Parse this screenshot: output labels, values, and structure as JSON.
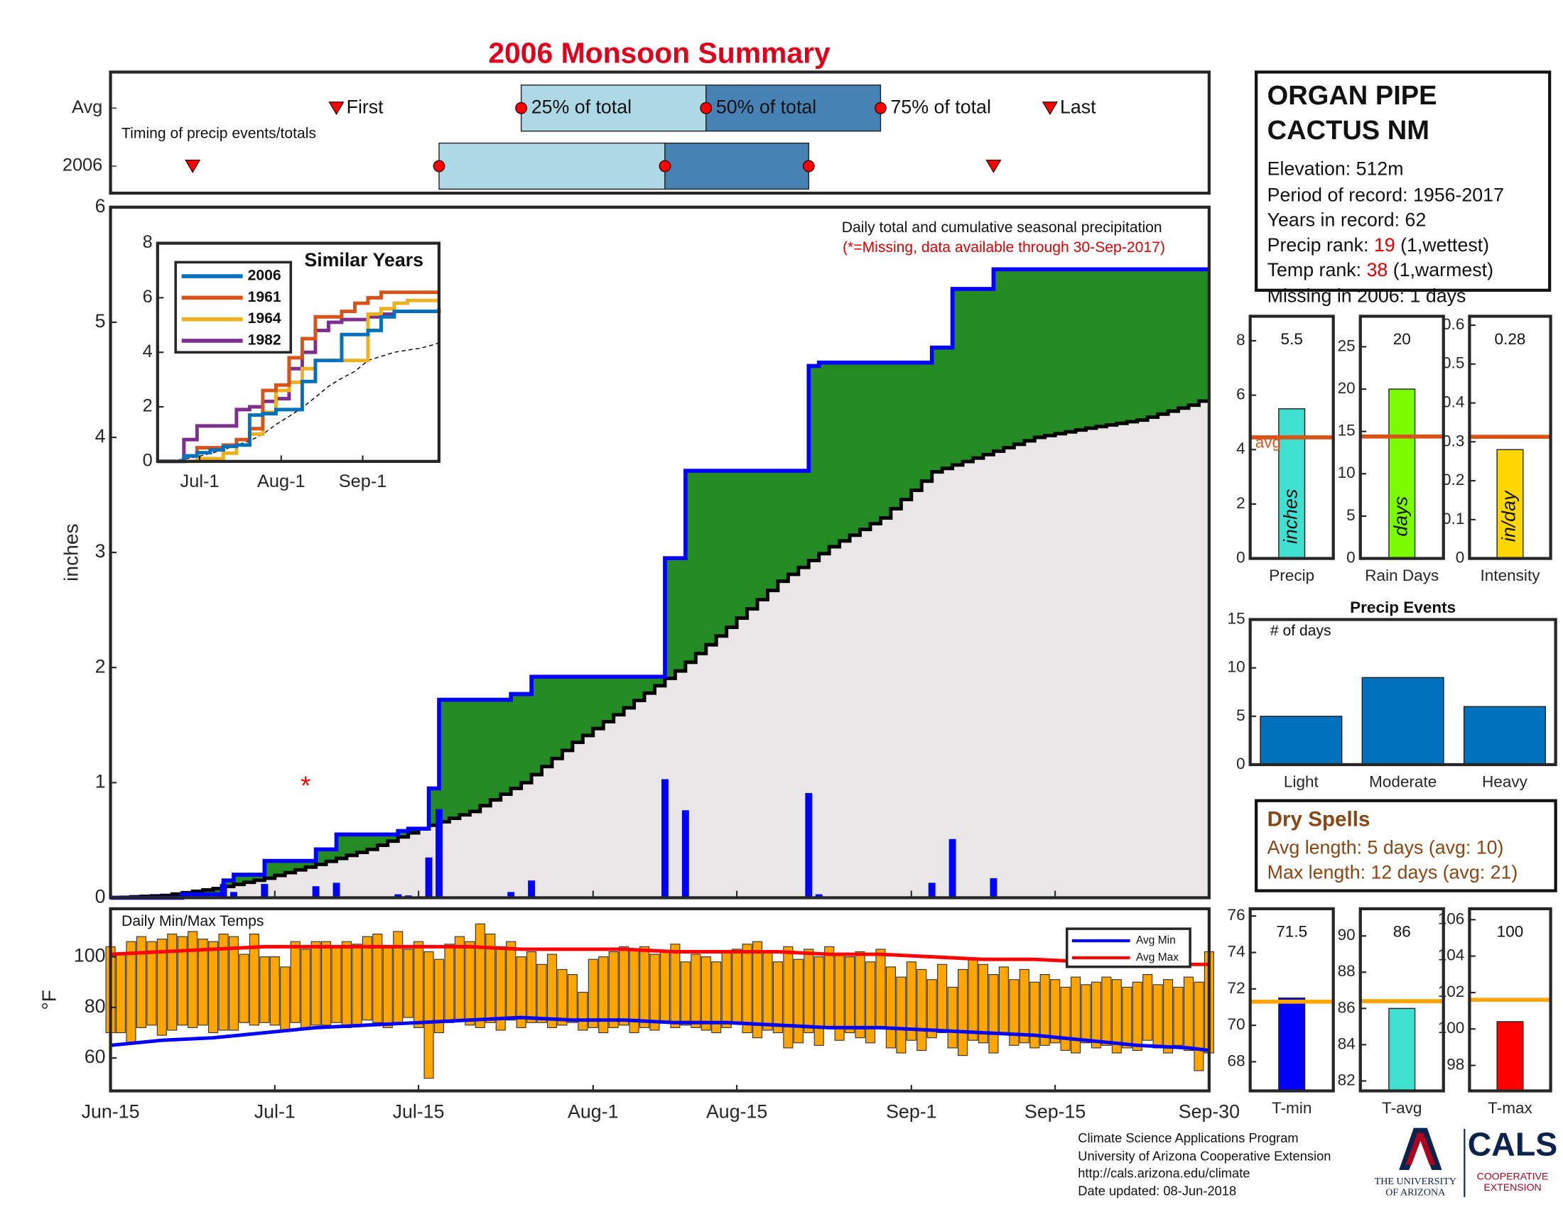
{
  "title": "2006 Monsoon Summary",
  "station": {
    "name": [
      "ORGAN PIPE",
      "CACTUS NM"
    ],
    "elevation": "Elevation: 512m",
    "period": "Period of record: 1956-2017",
    "years": "Years in record: 62",
    "precip_rank": {
      "label": "Precip rank: ",
      "rank": "19",
      "note": " (1,wettest)"
    },
    "temp_rank": {
      "label": "Temp rank: ",
      "rank": "38",
      "note": " (1,warmest)"
    },
    "missing": "Missing in 2006: 1 days"
  },
  "dry_spells": {
    "title": "Dry Spells",
    "lines": [
      "Avg length: 5 days (avg: 10)",
      "Max length: 12 days (avg: 21)"
    ]
  },
  "footer": [
    "Climate Science Applications Program",
    "University of Arizona Cooperative Extension",
    "http://cals.arizona.edu/climate",
    " Date updated: 08-Jun-2018"
  ],
  "logos": {
    "ua": [
      "THE UNIVERSITY",
      "OF ARIZONA"
    ],
    "cals": "CALS",
    "cals_sub": [
      "COOPERATIVE",
      "EXTENSION"
    ]
  },
  "chart_data": [
    {
      "type": "timeline",
      "subtitle": "Timing of precip events/totals",
      "markers": [
        "First",
        "25% of total",
        "50% of total",
        "75% of total",
        "Last"
      ],
      "series": [
        {
          "name": "Avg",
          "values": [
            22,
            40,
            58,
            75,
            91.5
          ]
        },
        {
          "name": "2006",
          "values": [
            8,
            32,
            54,
            68,
            86
          ]
        }
      ],
      "colors": [
        "#add8e6",
        "#4682b4"
      ],
      "marker_color": "#ff0000",
      "xlim": [
        0,
        107
      ]
    },
    {
      "type": "area",
      "subtitle": "Daily total and cumulative seasonal precipitation",
      "note": "(*=Missing, data available through 30-Sep-2017)",
      "ylabel": "inches",
      "xlim": [
        0,
        107
      ],
      "ylim": [
        0,
        6
      ],
      "yticks": [
        0,
        1,
        2,
        3,
        4,
        5,
        6
      ],
      "x": [
        7,
        11,
        12,
        15,
        20,
        22,
        28,
        29,
        31,
        32,
        39,
        41,
        54,
        56,
        68,
        69,
        80,
        82,
        86
      ],
      "values": [
        0.03,
        0.12,
        0.05,
        0.12,
        0.1,
        0.13,
        0.03,
        0.02,
        0.35,
        0.77,
        0.05,
        0.15,
        1.03,
        0.76,
        0.91,
        0.03,
        0.13,
        0.51,
        0.17
      ],
      "color": "#0000ff",
      "fill": "#228b22",
      "average": {
        "x": [
          0,
          5,
          10,
          15,
          20,
          25,
          30,
          35,
          40,
          45,
          50,
          55,
          60,
          65,
          70,
          75,
          80,
          85,
          90,
          95,
          100,
          105,
          107
        ],
        "values": [
          0,
          0.02,
          0.08,
          0.17,
          0.29,
          0.42,
          0.6,
          0.75,
          1.0,
          1.35,
          1.65,
          1.97,
          2.35,
          2.75,
          3.05,
          3.3,
          3.7,
          3.85,
          4.0,
          4.08,
          4.15,
          4.28,
          4.35
        ],
        "color": "#000000",
        "fill": "#e8e6e6"
      },
      "missing": {
        "x": 19,
        "value": 1,
        "label": "*",
        "color": "#ff0000"
      }
    },
    {
      "type": "line",
      "title": "Similar Years",
      "xlim": [
        0,
        107
      ],
      "ylim": [
        0,
        8
      ],
      "yticks": [
        0,
        2,
        4,
        6,
        8
      ],
      "xticks": [
        {
          "value": 16,
          "label": "Jul-1"
        },
        {
          "value": 47,
          "label": "Aug-1"
        },
        {
          "value": 78,
          "label": "Sep-1"
        }
      ],
      "x": [
        0,
        10,
        15,
        20,
        25,
        30,
        35,
        40,
        45,
        50,
        55,
        60,
        65,
        70,
        75,
        80,
        85,
        90,
        95,
        100,
        107
      ],
      "series": [
        {
          "name": "2006",
          "color": "#0072bd",
          "values": [
            0,
            0.2,
            0.32,
            0.42,
            0.55,
            0.6,
            1.7,
            1.75,
            1.9,
            1.9,
            2.93,
            3.7,
            3.7,
            4.65,
            4.65,
            4.8,
            5.3,
            5.5,
            5.5,
            5.5,
            5.5
          ]
        },
        {
          "name": "1961",
          "color": "#d95319",
          "values": [
            0,
            0.2,
            0.5,
            0.5,
            0.6,
            0.8,
            1.2,
            2.6,
            2.8,
            3.8,
            4.5,
            5.3,
            5.3,
            5.5,
            5.8,
            6.0,
            6.2,
            6.2,
            6.2,
            6.2,
            6.2
          ]
        },
        {
          "name": "1964",
          "color": "#edb120",
          "values": [
            0,
            0,
            0.1,
            0.1,
            0.3,
            0.6,
            1.0,
            1.8,
            2.6,
            2.9,
            3.4,
            3.7,
            3.7,
            3.7,
            3.7,
            5.4,
            5.6,
            5.8,
            5.9,
            5.9,
            5.9
          ]
        },
        {
          "name": "1982",
          "color": "#7e2f8e",
          "values": [
            0,
            0.8,
            1.3,
            1.3,
            1.3,
            1.9,
            2.0,
            2.2,
            2.3,
            3.4,
            4.0,
            4.8,
            5.1,
            5.2,
            5.2,
            5.3,
            5.4,
            5.5,
            5.5,
            5.5,
            5.6
          ]
        }
      ]
    },
    {
      "type": "bar",
      "categories": [
        "Precip"
      ],
      "values": [
        5.5
      ],
      "label": "inches",
      "average": 4.45,
      "average_label": "avg",
      "ylim": [
        0,
        8.9
      ],
      "yticks": [
        0,
        2,
        4,
        6,
        8
      ],
      "color": "#40e0d0",
      "average_color": "#d95319"
    },
    {
      "type": "bar",
      "categories": [
        "Rain Days"
      ],
      "values": [
        20
      ],
      "label": "days",
      "average": 14.4,
      "ylim": [
        0,
        28.6
      ],
      "yticks": [
        0,
        5,
        10,
        15,
        20,
        25
      ],
      "color": "#7cfc00",
      "average_color": "#d95319"
    },
    {
      "type": "bar",
      "categories": [
        "Intensity"
      ],
      "values": [
        0.28
      ],
      "label": "in/day",
      "average": 0.313,
      "ylim": [
        0,
        0.623
      ],
      "yticks": [
        0,
        0.1,
        0.2,
        0.3,
        0.4,
        0.5,
        0.6
      ],
      "color": "#ffd700",
      "average_color": "#d95319"
    },
    {
      "type": "bar",
      "title": "Precip Events",
      "ylabel": "# of days",
      "categories": [
        "Light",
        "Moderate",
        "Heavy"
      ],
      "values": [
        5,
        9,
        6
      ],
      "ylim": [
        0,
        15
      ],
      "yticks": [
        0,
        5,
        10,
        15
      ],
      "color": "#0072bd"
    },
    {
      "type": "range",
      "title": "Daily Min/Max Temps",
      "ylabel": "°F",
      "xlim": [
        0,
        107
      ],
      "ylim": [
        47,
        119
      ],
      "yticks": [
        60,
        80,
        100
      ],
      "xticks": [
        {
          "value": 0,
          "label": "Jun-15"
        },
        {
          "value": 16,
          "label": "Jul-1"
        },
        {
          "value": 30,
          "label": "Jul-15"
        },
        {
          "value": 47,
          "label": "Aug-1"
        },
        {
          "value": 61,
          "label": "Aug-15"
        },
        {
          "value": 78,
          "label": "Sep-1"
        },
        {
          "value": 92,
          "label": "Sep-15"
        },
        {
          "value": 107,
          "label": "Sep-30"
        }
      ],
      "x": [
        0,
        1,
        2,
        3,
        4,
        5,
        6,
        7,
        8,
        9,
        10,
        11,
        12,
        13,
        14,
        15,
        16,
        17,
        18,
        19,
        20,
        21,
        22,
        23,
        24,
        25,
        26,
        27,
        28,
        29,
        30,
        31,
        32,
        33,
        34,
        35,
        36,
        37,
        38,
        39,
        40,
        41,
        42,
        43,
        44,
        45,
        46,
        47,
        48,
        49,
        50,
        51,
        52,
        53,
        54,
        55,
        56,
        57,
        58,
        59,
        60,
        61,
        62,
        63,
        64,
        65,
        66,
        67,
        68,
        69,
        70,
        71,
        72,
        73,
        74,
        75,
        76,
        77,
        78,
        79,
        80,
        81,
        82,
        83,
        84,
        85,
        86,
        87,
        88,
        89,
        90,
        91,
        92,
        93,
        94,
        95,
        96,
        97,
        98,
        99,
        100,
        101,
        102,
        103,
        104,
        105,
        106,
        107
      ],
      "high": [
        104,
        101,
        106,
        108,
        106,
        107,
        109,
        108,
        110,
        107,
        106,
        109,
        108,
        101,
        109,
        100,
        100,
        96,
        106,
        103,
        106,
        106,
        104,
        106,
        105,
        108,
        109,
        104,
        110,
        103,
        106,
        102,
        99,
        105,
        108,
        106,
        113,
        109,
        104,
        106,
        100,
        102,
        97,
        101,
        95,
        93,
        86,
        99,
        100,
        102,
        104,
        103,
        104,
        101,
        102,
        105,
        98,
        101,
        100,
        98,
        102,
        103,
        105,
        106,
        102,
        98,
        104,
        99,
        103,
        100,
        104,
        101,
        100,
        102,
        98,
        103,
        96,
        92,
        98,
        95,
        91,
        97,
        88,
        95,
        99,
        97,
        93,
        96,
        91,
        95,
        90,
        93,
        91,
        88,
        92,
        89,
        90,
        92,
        91,
        88,
        90,
        93,
        89,
        91,
        88,
        92,
        90,
        102
      ],
      "low": [
        70,
        70,
        66,
        72,
        73,
        69,
        71,
        73,
        72,
        73,
        70,
        71,
        71,
        74,
        73,
        74,
        73,
        71,
        74,
        72,
        73,
        73,
        74,
        72,
        73,
        75,
        74,
        72,
        74,
        76,
        72,
        52,
        70,
        74,
        75,
        73,
        72,
        74,
        71,
        75,
        72,
        74,
        74,
        72,
        73,
        74,
        71,
        72,
        70,
        72,
        73,
        70,
        72,
        71,
        74,
        72,
        73,
        72,
        71,
        70,
        72,
        74,
        70,
        68,
        71,
        70,
        64,
        66,
        70,
        65,
        72,
        67,
        70,
        68,
        66,
        72,
        64,
        62,
        67,
        63,
        68,
        70,
        64,
        61,
        67,
        66,
        62,
        70,
        65,
        66,
        64,
        65,
        66,
        63,
        62,
        66,
        64,
        65,
        62,
        64,
        63,
        67,
        64,
        62,
        65,
        63,
        55,
        62
      ],
      "bar_color": "#ffa500",
      "series": [
        {
          "name": "Avg Min",
          "color": "#0000ff",
          "x": [
            0,
            5,
            10,
            15,
            20,
            25,
            30,
            35,
            40,
            45,
            50,
            55,
            60,
            65,
            70,
            75,
            80,
            85,
            90,
            95,
            100,
            105,
            107
          ],
          "values": [
            65,
            67,
            68,
            70,
            72,
            73,
            74,
            75,
            76,
            75,
            75,
            74,
            74,
            73,
            72,
            72,
            71,
            70,
            69,
            67,
            65,
            64,
            63
          ]
        },
        {
          "name": "Avg Max",
          "color": "#ff0000",
          "x": [
            0,
            5,
            10,
            15,
            20,
            25,
            30,
            35,
            40,
            45,
            50,
            55,
            60,
            65,
            70,
            75,
            80,
            85,
            90,
            95,
            100,
            105,
            107
          ],
          "values": [
            101,
            102,
            103,
            104,
            104,
            104,
            104,
            104,
            103,
            103,
            103,
            102,
            102,
            102,
            101,
            101,
            100,
            99,
            99,
            98,
            98,
            97,
            97
          ]
        }
      ]
    },
    {
      "type": "bar",
      "categories": [
        "T-min"
      ],
      "values": [
        71.5
      ],
      "average": 71.3,
      "ylim": [
        66.4,
        76.4
      ],
      "yticks": [
        68,
        70,
        72,
        74,
        76
      ],
      "color": "#0000ff",
      "average_color": "#ffa500"
    },
    {
      "type": "bar",
      "categories": [
        "T-avg"
      ],
      "values": [
        86
      ],
      "average": 86.4,
      "ylim": [
        81.45,
        91.5
      ],
      "yticks": [
        82,
        84,
        86,
        88,
        90
      ],
      "color": "#40e0d0",
      "average_color": "#ffa500"
    },
    {
      "type": "bar",
      "categories": [
        "T-max"
      ],
      "values": [
        100.4
      ],
      "value_labels": [
        "100"
      ],
      "average": 101.6,
      "ylim": [
        96.6,
        106.6
      ],
      "yticks": [
        98,
        100,
        102,
        104,
        106
      ],
      "color": "#ff0000",
      "average_color": "#ffa500"
    }
  ]
}
